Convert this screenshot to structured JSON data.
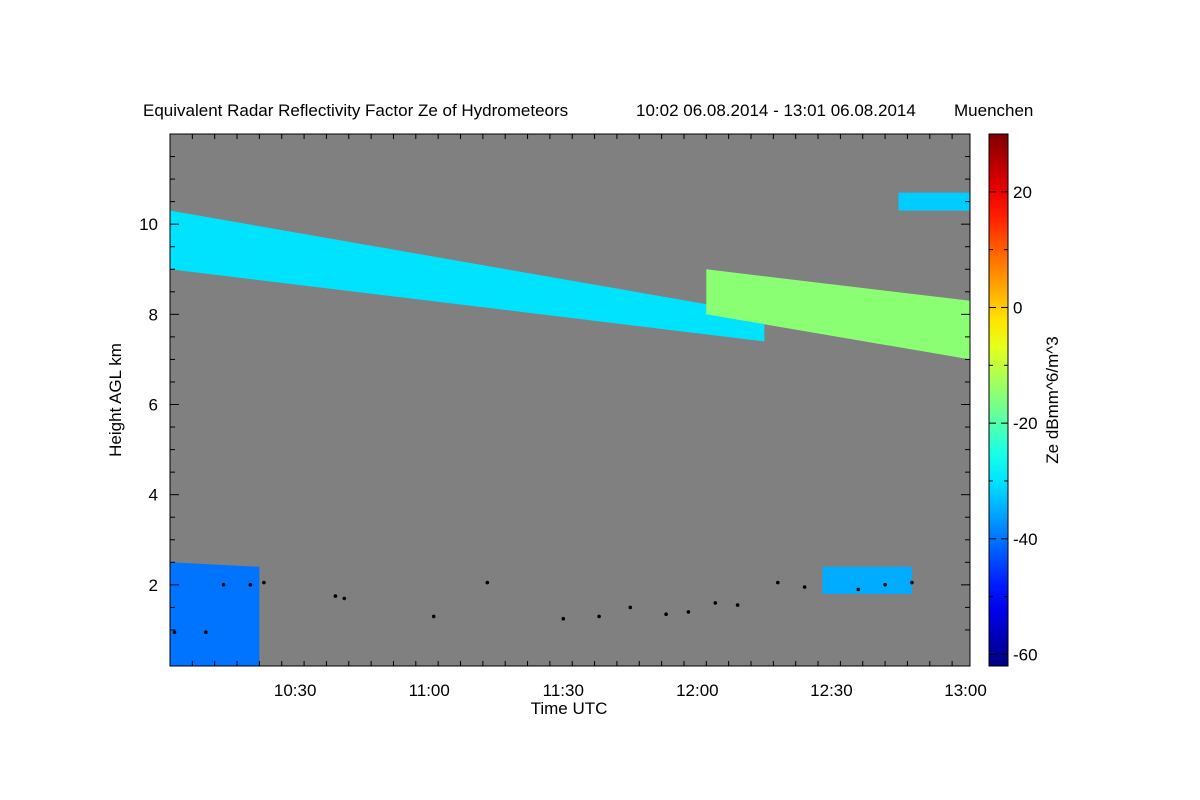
{
  "chart_data": {
    "type": "heatmap",
    "title": "Equivalent Radar Reflectivity Factor Ze of Hydrometeors",
    "time_range": "10:02 06.08.2014 - 13:01 06.08.2014",
    "location": "Muenchen",
    "xlabel": "Time UTC",
    "ylabel": "Height AGL km",
    "xlim": [
      "10:02",
      "13:01"
    ],
    "x_tick_labels": [
      "10:30",
      "11:00",
      "11:30",
      "12:00",
      "12:30",
      "13:00"
    ],
    "ylim": [
      0.2,
      12.0
    ],
    "y_tick_labels": [
      "2",
      "4",
      "6",
      "8",
      "10"
    ],
    "colorbar": {
      "label": "Ze dBmm^6/m^3",
      "range": [
        -62,
        30
      ],
      "tick_labels": [
        "-60",
        "-40",
        "-20",
        "0",
        "20"
      ],
      "colormap": "jet"
    },
    "background_color": "#808080",
    "features": [
      {
        "name": "upper cloud band",
        "x_start": "10:02",
        "x_end": "12:15",
        "top_km_start": 10.3,
        "top_km_end": 8.0,
        "base_km_start": 9.0,
        "base_km_end": 7.4,
        "ze_dbz": -30
      },
      {
        "name": "cirrus",
        "x_start": "12:02",
        "x_end": "13:01",
        "top_km_start": 9.0,
        "top_km_end": 8.3,
        "base_km_start": 8.0,
        "base_km_end": 7.0,
        "ze_dbz": -15
      },
      {
        "name": "high cirrus patch",
        "x_start": "12:45",
        "x_end": "13:01",
        "top_km_start": 10.7,
        "top_km_end": 10.7,
        "base_km_start": 10.3,
        "base_km_end": 10.3,
        "ze_dbz": -32
      },
      {
        "name": "boundary layer clutter",
        "x_start": "10:02",
        "x_end": "10:22",
        "top_km_start": 2.5,
        "top_km_end": 2.4,
        "base_km_start": 0.2,
        "base_km_end": 0.2,
        "ze_dbz": -40
      },
      {
        "name": "low cumulus",
        "x_start": "12:28",
        "x_end": "12:48",
        "top_km_start": 2.4,
        "top_km_end": 2.4,
        "base_km_start": 1.8,
        "base_km_end": 1.8,
        "ze_dbz": -35
      }
    ],
    "cloud_base_height_km": [
      [
        "10:03",
        0.95
      ],
      [
        "10:10",
        0.95
      ],
      [
        "10:14",
        2.0
      ],
      [
        "10:20",
        2.0
      ],
      [
        "10:23",
        2.05
      ],
      [
        "10:39",
        1.75
      ],
      [
        "10:41",
        1.7
      ],
      [
        "11:01",
        1.3
      ],
      [
        "11:13",
        2.05
      ],
      [
        "11:30",
        1.25
      ],
      [
        "11:38",
        1.3
      ],
      [
        "11:45",
        1.5
      ],
      [
        "11:53",
        1.35
      ],
      [
        "11:58",
        1.4
      ],
      [
        "12:04",
        1.6
      ],
      [
        "12:09",
        1.55
      ],
      [
        "12:18",
        2.05
      ],
      [
        "12:24",
        1.95
      ],
      [
        "12:36",
        1.9
      ],
      [
        "12:42",
        2.0
      ],
      [
        "12:48",
        2.05
      ]
    ]
  }
}
